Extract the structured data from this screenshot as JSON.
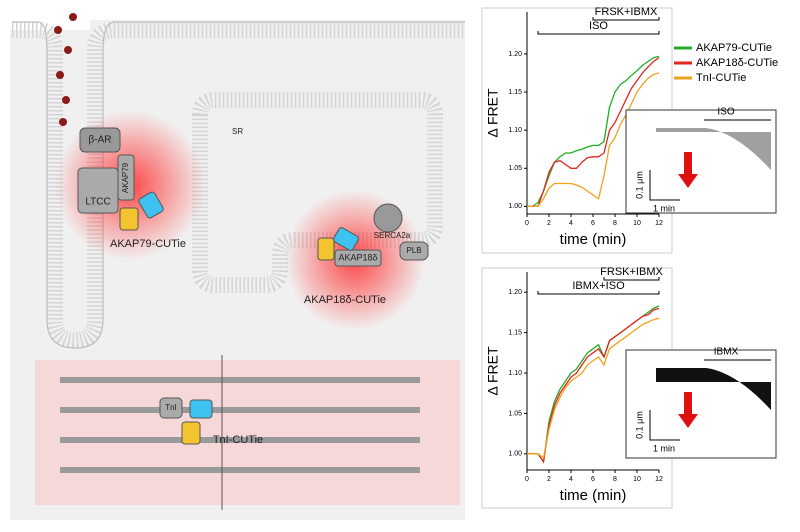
{
  "diagram": {
    "labels": [
      "β-AR",
      "AKAP79",
      "LTCC",
      "AKAP79-CUTie",
      "SR",
      "SERCA2a",
      "AKAP18δ",
      "PLB",
      "AKAP18δ-CUTie",
      "TnI",
      "TnI-CUTie"
    ]
  },
  "chart_data": [
    {
      "type": "line",
      "x_label": "time (min)",
      "y_label": "Δ FRET",
      "x": [
        0,
        0.5,
        1,
        1.5,
        2,
        2.5,
        3,
        3.5,
        4,
        4.5,
        5,
        5.5,
        6,
        6.5,
        7,
        7.5,
        8,
        8.5,
        9,
        9.5,
        10,
        10.5,
        11,
        11.5,
        12
      ],
      "series": [
        {
          "name": "AKAP79-CUTie",
          "color": "#1fae2a",
          "values": [
            1.0,
            1.0,
            1.005,
            1.02,
            1.04,
            1.058,
            1.065,
            1.07,
            1.07,
            1.073,
            1.075,
            1.078,
            1.08,
            1.08,
            1.085,
            1.13,
            1.15,
            1.16,
            1.165,
            1.172,
            1.178,
            1.185,
            1.19,
            1.195,
            1.197
          ]
        },
        {
          "name": "AKAP18δ-CUTie",
          "color": "#e3261f",
          "values": [
            1.0,
            1.0,
            1.0,
            1.02,
            1.045,
            1.058,
            1.06,
            1.055,
            1.05,
            1.05,
            1.058,
            1.064,
            1.065,
            1.065,
            1.07,
            1.1,
            1.11,
            1.125,
            1.14,
            1.155,
            1.165,
            1.175,
            1.183,
            1.19,
            1.195
          ]
        },
        {
          "name": "TnI-CUTie",
          "color": "#f0a21d",
          "values": [
            1.0,
            1.0,
            1.0,
            1.01,
            1.024,
            1.03,
            1.03,
            1.03,
            1.03,
            1.028,
            1.025,
            1.02,
            1.015,
            1.01,
            1.04,
            1.08,
            1.09,
            1.108,
            1.12,
            1.135,
            1.15,
            1.16,
            1.168,
            1.173,
            1.175
          ]
        }
      ],
      "xlim": [
        0,
        12
      ],
      "xticks": [
        0,
        2,
        4,
        6,
        8,
        10,
        12
      ],
      "ylim": [
        0.99,
        1.255
      ],
      "yticks": [
        {
          "value": 1.0,
          "label": "1.00"
        },
        {
          "value": 1.05,
          "label": "1.05"
        },
        {
          "value": 1.1,
          "label": "1.10"
        },
        {
          "value": 1.15,
          "label": "1.15"
        },
        {
          "value": 1.2,
          "label": "1.20"
        }
      ],
      "legend": "right",
      "annotations": [
        {
          "text": "ISO",
          "x": [
            1,
            12
          ]
        },
        {
          "text": "FRSK+IBMX",
          "x": [
            6,
            12
          ]
        }
      ],
      "inset": {
        "label": "ISO",
        "scale_y": "0.1 μm",
        "scale_x": "1 min"
      }
    },
    {
      "type": "line",
      "x_label": "time (min)",
      "y_label": "Δ FRET",
      "x": [
        0,
        0.5,
        1,
        1.5,
        2,
        2.5,
        3,
        3.5,
        4,
        4.5,
        5,
        5.5,
        6,
        6.5,
        7,
        7.5,
        8,
        8.5,
        9,
        9.5,
        10,
        10.5,
        11,
        11.5,
        12
      ],
      "series": [
        {
          "color": "#1fae2a",
          "values": [
            1.0,
            1.0,
            1.0,
            0.99,
            1.04,
            1.065,
            1.08,
            1.09,
            1.1,
            1.105,
            1.115,
            1.125,
            1.13,
            1.135,
            1.12,
            1.14,
            1.145,
            1.15,
            1.155,
            1.16,
            1.165,
            1.17,
            1.175,
            1.18,
            1.183
          ]
        },
        {
          "color": "#e3261f",
          "values": [
            1.0,
            1.0,
            1.0,
            0.99,
            1.035,
            1.06,
            1.075,
            1.085,
            1.095,
            1.1,
            1.11,
            1.12,
            1.125,
            1.13,
            1.12,
            1.14,
            1.145,
            1.15,
            1.155,
            1.16,
            1.165,
            1.17,
            1.172,
            1.178,
            1.18
          ]
        },
        {
          "color": "#f0a21d",
          "values": [
            1.0,
            1.0,
            1.0,
            0.995,
            1.03,
            1.055,
            1.07,
            1.082,
            1.09,
            1.095,
            1.1,
            1.11,
            1.115,
            1.12,
            1.11,
            1.13,
            1.135,
            1.14,
            1.145,
            1.15,
            1.155,
            1.16,
            1.163,
            1.166,
            1.168
          ]
        }
      ],
      "xlim": [
        0,
        12
      ],
      "xticks": [
        0,
        2,
        4,
        6,
        8,
        10,
        12
      ],
      "ylim": [
        0.98,
        1.225
      ],
      "yticks": [
        {
          "value": 1.0,
          "label": "1.00"
        },
        {
          "value": 1.05,
          "label": "1.05"
        },
        {
          "value": 1.1,
          "label": "1.10"
        },
        {
          "value": 1.15,
          "label": "1.15"
        },
        {
          "value": 1.2,
          "label": "1.20"
        }
      ],
      "annotations": [
        {
          "text": "IBMX+ISO",
          "x": [
            1,
            12
          ]
        },
        {
          "text": "FRSK+IBMX",
          "x": [
            7,
            12
          ]
        }
      ],
      "inset": {
        "label": "IBMX",
        "scale_y": "0.1 μm",
        "scale_x": "1 min"
      }
    }
  ]
}
